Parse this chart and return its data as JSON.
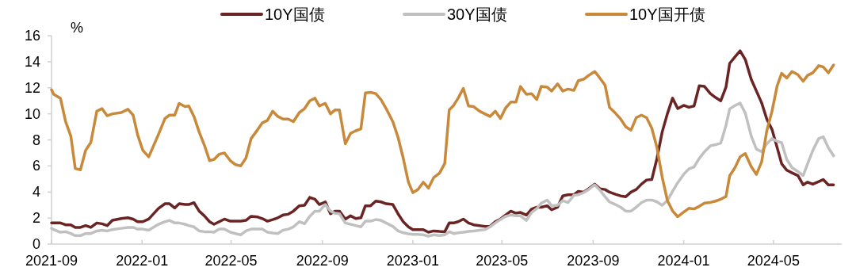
{
  "chart_data": {
    "type": "line",
    "ylabel": "%",
    "legend": "top",
    "grid": false,
    "marker": "none",
    "line_style": "solid",
    "xlim": [
      "2021-09",
      "2024-08"
    ],
    "xticks": [
      "2021-09",
      "2022-01",
      "2022-05",
      "2022-09",
      "2023-01",
      "2023-05",
      "2023-09",
      "2024-01",
      "2024-05"
    ],
    "ylim": [
      0,
      16
    ],
    "yticks": [
      0,
      2,
      4,
      6,
      8,
      10,
      12,
      14,
      16
    ],
    "x": [
      "2021-09-01",
      "2021-09-04",
      "2021-09-13",
      "2021-09-20",
      "2021-09-27",
      "2021-10-03",
      "2021-10-10",
      "2021-10-17",
      "2021-10-24",
      "2021-11-01",
      "2021-11-08",
      "2021-11-15",
      "2021-11-22",
      "2021-12-04",
      "2021-12-13",
      "2021-12-20",
      "2021-12-26",
      "2022-01-02",
      "2022-01-10",
      "2022-01-23",
      "2022-02-01",
      "2022-02-07",
      "2022-02-14",
      "2022-02-20",
      "2022-02-28",
      "2022-03-05",
      "2022-03-12",
      "2022-03-19",
      "2022-03-26",
      "2022-04-02",
      "2022-04-08",
      "2022-04-15",
      "2022-04-22",
      "2022-04-30",
      "2022-05-07",
      "2022-05-14",
      "2022-05-21",
      "2022-05-28",
      "2022-06-06",
      "2022-06-12",
      "2022-06-19",
      "2022-06-26",
      "2022-07-03",
      "2022-07-10",
      "2022-07-17",
      "2022-07-24",
      "2022-08-01",
      "2022-08-08",
      "2022-08-15",
      "2022-08-22",
      "2022-08-28",
      "2022-09-05",
      "2022-09-12",
      "2022-09-18",
      "2022-09-24",
      "2022-10-02",
      "2022-10-09",
      "2022-10-16",
      "2022-10-23",
      "2022-10-29",
      "2022-11-05",
      "2022-11-12",
      "2022-11-19",
      "2022-11-26",
      "2022-12-05",
      "2022-12-12",
      "2022-12-19",
      "2022-12-26",
      "2023-01-01",
      "2023-01-08",
      "2023-01-15",
      "2023-01-22",
      "2023-01-29",
      "2023-02-06",
      "2023-02-13",
      "2023-02-19",
      "2023-02-25",
      "2023-03-03",
      "2023-03-10",
      "2023-03-17",
      "2023-03-24",
      "2023-04-01",
      "2023-04-08",
      "2023-04-15",
      "2023-04-22",
      "2023-04-29",
      "2023-05-06",
      "2023-05-13",
      "2023-05-20",
      "2023-05-26",
      "2023-06-03",
      "2023-06-10",
      "2023-06-17",
      "2023-06-23",
      "2023-07-01",
      "2023-07-07",
      "2023-07-15",
      "2023-07-22",
      "2023-07-29",
      "2023-08-06",
      "2023-08-12",
      "2023-08-19",
      "2023-08-26",
      "2023-09-03",
      "2023-09-10",
      "2023-09-17",
      "2023-09-23",
      "2023-10-01",
      "2023-10-08",
      "2023-10-15",
      "2023-10-22",
      "2023-10-29",
      "2023-11-05",
      "2023-11-12",
      "2023-11-19",
      "2023-11-26",
      "2023-12-03",
      "2023-12-10",
      "2023-12-17",
      "2023-12-24",
      "2024-01-01",
      "2024-01-08",
      "2024-01-15",
      "2024-01-22",
      "2024-01-29",
      "2024-02-06",
      "2024-02-13",
      "2024-02-20",
      "2024-02-27",
      "2024-03-03",
      "2024-03-10",
      "2024-03-17",
      "2024-03-24",
      "2024-04-01",
      "2024-04-08",
      "2024-04-15",
      "2024-04-22",
      "2024-04-29",
      "2024-05-06",
      "2024-05-12",
      "2024-05-19",
      "2024-05-26",
      "2024-06-03",
      "2024-06-10",
      "2024-06-16",
      "2024-06-23",
      "2024-07-01",
      "2024-07-07",
      "2024-07-14",
      "2024-07-21"
    ],
    "series": [
      {
        "name": "10Y国债",
        "color": "#6b2424",
        "values": [
          1.62,
          1.62,
          1.62,
          1.48,
          1.48,
          1.28,
          1.28,
          1.42,
          1.28,
          1.62,
          1.56,
          1.42,
          1.82,
          1.96,
          2.02,
          1.92,
          1.72,
          1.72,
          1.92,
          2.73,
          3.1,
          3.1,
          2.77,
          3.1,
          3.04,
          3.04,
          3.18,
          2.53,
          2.17,
          1.72,
          1.52,
          1.72,
          1.92,
          1.76,
          1.76,
          1.76,
          1.82,
          2.13,
          2.08,
          1.96,
          1.76,
          1.88,
          2.02,
          2.23,
          2.29,
          2.53,
          2.94,
          2.98,
          3.58,
          3.44,
          3.04,
          3.24,
          2.33,
          2.53,
          2.53,
          1.92,
          2.17,
          1.96,
          2.02,
          2.94,
          2.94,
          3.3,
          3.24,
          3.1,
          3.04,
          2.33,
          1.72,
          1.32,
          1.11,
          1.11,
          1.11,
          0.91,
          1.01,
          0.97,
          0.95,
          1.62,
          1.62,
          1.72,
          1.92,
          1.62,
          1.48,
          1.42,
          1.36,
          1.36,
          1.72,
          1.92,
          2.23,
          2.53,
          2.37,
          2.43,
          2.23,
          2.69,
          2.83,
          2.83,
          2.94,
          2.63,
          2.83,
          3.7,
          3.79,
          3.79,
          4.05,
          3.99,
          4.25,
          4.6,
          4.25,
          4.19,
          3.99,
          3.83,
          3.7,
          3.64,
          3.99,
          4.19,
          4.6,
          4.92,
          4.96,
          6.58,
          8.6,
          10.0,
          11.2,
          10.4,
          10.65,
          10.5,
          10.6,
          12.15,
          12.1,
          11.55,
          11.25,
          11.0,
          12.05,
          13.87,
          14.37,
          14.84,
          14.17,
          12.65,
          11.75,
          10.85,
          9.6,
          8.8,
          7.4,
          6.17,
          5.67,
          5.47,
          5.26,
          4.55,
          4.76,
          4.6,
          4.8,
          4.96,
          4.55,
          4.55
        ]
      },
      {
        "name": "30Y国债",
        "color": "#c0c0c0",
        "values": [
          1.21,
          1.11,
          0.91,
          0.95,
          0.81,
          0.65,
          0.65,
          0.81,
          0.81,
          1.01,
          1.07,
          1.01,
          1.11,
          1.21,
          1.28,
          1.28,
          1.15,
          1.15,
          1.07,
          1.52,
          1.72,
          1.82,
          1.62,
          1.62,
          1.52,
          1.42,
          1.32,
          1.01,
          0.95,
          0.95,
          0.91,
          1.15,
          1.15,
          0.91,
          0.81,
          0.71,
          1.01,
          1.15,
          1.15,
          1.15,
          0.91,
          0.85,
          0.81,
          1.07,
          1.15,
          1.32,
          1.72,
          1.56,
          2.13,
          2.53,
          2.53,
          3.04,
          2.53,
          2.37,
          2.33,
          1.62,
          1.52,
          1.42,
          1.32,
          1.76,
          1.76,
          1.88,
          1.82,
          1.62,
          1.36,
          1.01,
          0.87,
          0.79,
          0.75,
          0.75,
          0.71,
          0.61,
          0.71,
          0.65,
          0.71,
          0.95,
          0.81,
          0.87,
          0.91,
          0.97,
          1.01,
          1.07,
          1.11,
          1.32,
          1.62,
          1.88,
          2.13,
          2.23,
          2.17,
          2.17,
          1.82,
          2.43,
          2.73,
          3.14,
          3.38,
          2.94,
          2.98,
          3.34,
          3.18,
          3.75,
          3.79,
          3.95,
          4.19,
          4.55,
          4.15,
          3.64,
          3.24,
          3.04,
          2.83,
          2.53,
          2.53,
          2.83,
          3.18,
          3.38,
          3.38,
          3.24,
          2.98,
          3.34,
          4.05,
          4.72,
          5.36,
          5.77,
          5.93,
          6.58,
          7.09,
          7.55,
          7.63,
          7.75,
          9.11,
          10.38,
          10.63,
          10.83,
          10.06,
          8.3,
          7.29,
          7.09,
          7.69,
          8.1,
          7.89,
          7.79,
          6.48,
          5.87,
          5.57,
          5.26,
          6.17,
          7.19,
          8.1,
          8.24,
          7.39,
          6.78
        ]
      },
      {
        "name": "10Y国开债",
        "color": "#c8893a",
        "values": [
          11.85,
          11.5,
          11.2,
          9.4,
          8.3,
          5.8,
          5.7,
          7.2,
          7.8,
          10.2,
          10.4,
          9.85,
          10.0,
          10.1,
          10.35,
          9.9,
          8.4,
          7.2,
          6.7,
          8.4,
          9.65,
          9.9,
          9.9,
          10.8,
          10.55,
          10.6,
          9.8,
          8.6,
          7.6,
          6.4,
          6.5,
          6.9,
          7.0,
          6.4,
          6.1,
          6.0,
          6.6,
          8.1,
          8.8,
          9.3,
          9.5,
          10.2,
          9.8,
          9.6,
          9.6,
          9.4,
          10.1,
          10.4,
          11.0,
          11.2,
          10.6,
          10.8,
          10.0,
          10.3,
          10.3,
          7.7,
          8.5,
          8.7,
          8.85,
          11.6,
          11.65,
          11.55,
          11.1,
          10.4,
          9.4,
          8.2,
          6.6,
          4.75,
          3.95,
          4.2,
          4.75,
          4.3,
          5.1,
          5.45,
          6.2,
          10.3,
          10.65,
          11.2,
          11.95,
          10.6,
          10.55,
          10.2,
          10.0,
          9.8,
          10.2,
          9.65,
          10.45,
          10.9,
          10.9,
          12.1,
          11.5,
          11.55,
          11.1,
          12.1,
          12.05,
          11.75,
          12.3,
          11.75,
          11.9,
          11.8,
          12.55,
          12.65,
          12.95,
          13.25,
          12.75,
          12.2,
          10.5,
          10.05,
          9.6,
          9.0,
          8.75,
          9.7,
          9.9,
          9.7,
          8.9,
          7.4,
          5.15,
          3.35,
          2.55,
          2.1,
          2.45,
          2.75,
          2.7,
          2.9,
          3.15,
          3.2,
          3.3,
          3.45,
          3.65,
          5.25,
          5.85,
          6.7,
          6.95,
          5.95,
          5.35,
          6.3,
          8.7,
          10.2,
          12.15,
          13.1,
          12.75,
          13.25,
          13.0,
          12.5,
          12.95,
          13.15,
          13.7,
          13.6,
          13.15,
          13.75
        ]
      }
    ]
  }
}
